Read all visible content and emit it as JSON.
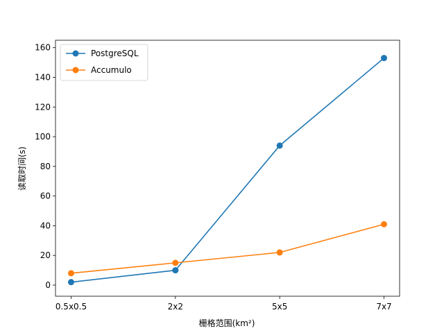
{
  "chart_data": {
    "type": "line",
    "title": "",
    "xlabel": "栅格范围(km²)",
    "ylabel": "读取时间(s)",
    "categories": [
      "0.5x0.5",
      "2x2",
      "5x5",
      "7x7"
    ],
    "ylim": [
      -7.5,
      165
    ],
    "yticks": [
      0,
      20,
      40,
      60,
      80,
      100,
      120,
      140,
      160
    ],
    "grid": false,
    "legend_position": "upper-left",
    "series": [
      {
        "name": "PostgreSQL",
        "color": "#1f77b4",
        "values": [
          2,
          10,
          94,
          153
        ]
      },
      {
        "name": "Accumulo",
        "color": "#ff7f0e",
        "values": [
          8,
          15,
          22,
          41
        ]
      }
    ]
  }
}
